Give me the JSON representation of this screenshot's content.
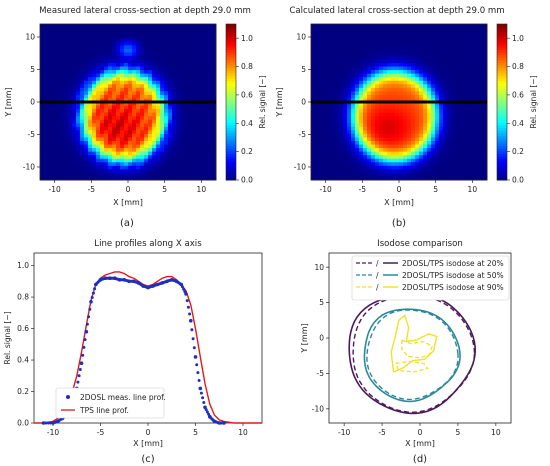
{
  "chart_data": [
    {
      "panel": "(a)",
      "type": "heatmap",
      "title": "Measured lateral cross-section at depth 29.0 mm",
      "xlabel": "X [mm]",
      "ylabel": "Y [mm]",
      "xlim": [
        -12,
        12
      ],
      "ylim": [
        -12,
        12
      ],
      "xticks": [
        "-10",
        "-5",
        "0",
        "5",
        "10"
      ],
      "yticks": [
        "10",
        "5",
        "0",
        "-5",
        "-10"
      ],
      "colorbar": {
        "label": "Rel. signal [−]",
        "ticks": [
          "1.0",
          "0.8",
          "0.6",
          "0.4",
          "0.2",
          "0.0"
        ],
        "range": [
          0,
          1.1
        ]
      },
      "horizontal_line_y": 0
    },
    {
      "panel": "(b)",
      "type": "heatmap",
      "title": "Calculated lateral cross-section at depth 29.0 mm",
      "xlabel": "X [mm]",
      "ylabel": "Y [mm]",
      "xlim": [
        -12,
        12
      ],
      "ylim": [
        -12,
        12
      ],
      "xticks": [
        "-10",
        "-5",
        "0",
        "5",
        "10"
      ],
      "yticks": [
        "10",
        "5",
        "0",
        "-5",
        "-10"
      ],
      "colorbar": {
        "label": "Rel. signal [−]",
        "ticks": [
          "1.0",
          "0.8",
          "0.6",
          "0.4",
          "0.2",
          "0.0"
        ],
        "range": [
          0,
          1.1
        ]
      },
      "horizontal_line_y": 0
    },
    {
      "panel": "(c)",
      "type": "line",
      "title": "Line profiles along X axis",
      "xlabel": "X [mm]",
      "ylabel": "Rel. signal [−]",
      "xlim": [
        -12,
        12
      ],
      "ylim": [
        0,
        1.08
      ],
      "xticks": [
        "-10",
        "-5",
        "0",
        "5",
        "10"
      ],
      "yticks": [
        "0.0",
        "0.2",
        "0.4",
        "0.6",
        "0.8",
        "1.0"
      ],
      "legend_position": "bottom-left",
      "series": [
        {
          "name": "2DOSL meas. line prof.",
          "style": "dots",
          "color": "#1f2fbf",
          "x": [
            -11,
            -10,
            -9.5,
            -9,
            -8.5,
            -8,
            -7.5,
            -7,
            -6.5,
            -6,
            -5.5,
            -5,
            -4.5,
            -4,
            -3.5,
            -3,
            -2.5,
            -2,
            -1.5,
            -1,
            -0.5,
            0,
            0.5,
            1,
            1.5,
            2,
            2.5,
            3,
            3.5,
            4,
            4.5,
            5,
            5.5,
            6,
            6.5,
            7,
            7.5,
            8
          ],
          "y": [
            0.0,
            0.0,
            0.01,
            0.03,
            0.06,
            0.12,
            0.22,
            0.38,
            0.58,
            0.77,
            0.88,
            0.91,
            0.92,
            0.92,
            0.92,
            0.91,
            0.91,
            0.9,
            0.9,
            0.89,
            0.87,
            0.86,
            0.87,
            0.88,
            0.89,
            0.9,
            0.91,
            0.9,
            0.88,
            0.82,
            0.65,
            0.42,
            0.22,
            0.1,
            0.04,
            0.01,
            0.0,
            0.0
          ]
        },
        {
          "name": "TPS line prof.",
          "style": "line",
          "color": "#e01a1a",
          "x": [
            -12,
            -11,
            -10,
            -9.5,
            -9,
            -8.5,
            -8,
            -7.5,
            -7,
            -6.5,
            -6,
            -5.5,
            -5,
            -4.5,
            -4,
            -3.5,
            -3,
            -2.5,
            -2,
            -1.5,
            -1,
            -0.5,
            0,
            0.5,
            1,
            1.5,
            2,
            2.5,
            3,
            3.5,
            4,
            4.5,
            5,
            5.5,
            6,
            6.5,
            7,
            7.5,
            8,
            9,
            10,
            12
          ],
          "y": [
            0.0,
            0.0,
            0.01,
            0.03,
            0.06,
            0.11,
            0.19,
            0.3,
            0.45,
            0.62,
            0.78,
            0.88,
            0.92,
            0.94,
            0.95,
            0.96,
            0.96,
            0.95,
            0.93,
            0.92,
            0.9,
            0.88,
            0.87,
            0.88,
            0.9,
            0.92,
            0.93,
            0.93,
            0.91,
            0.88,
            0.84,
            0.75,
            0.6,
            0.42,
            0.25,
            0.12,
            0.05,
            0.02,
            0.01,
            0.0,
            0.0,
            0.0
          ]
        }
      ]
    },
    {
      "panel": "(d)",
      "type": "line",
      "title": "Isodose comparison",
      "xlabel": "X [mm]",
      "ylabel": "Y [mm]",
      "xlim": [
        -12,
        12
      ],
      "ylim": [
        -12,
        12
      ],
      "xticks": [
        "-10",
        "-5",
        "0",
        "5",
        "10"
      ],
      "yticks": [
        "10",
        "5",
        "0",
        "-5",
        "-10"
      ],
      "legend_position": "top-right",
      "series": [
        {
          "name": "2DOSL/TPS isodose at 20%",
          "color": "#4b1a5e"
        },
        {
          "name": "2DOSL/TPS isodose at 50%",
          "color": "#2a8a9a"
        },
        {
          "name": "2DOSL/TPS isodose at 90%",
          "color": "#f2e02a"
        }
      ],
      "legend_separator": "/"
    }
  ],
  "captions": {
    "a": "(a)",
    "b": "(b)",
    "c": "(c)",
    "d": "(d)"
  }
}
